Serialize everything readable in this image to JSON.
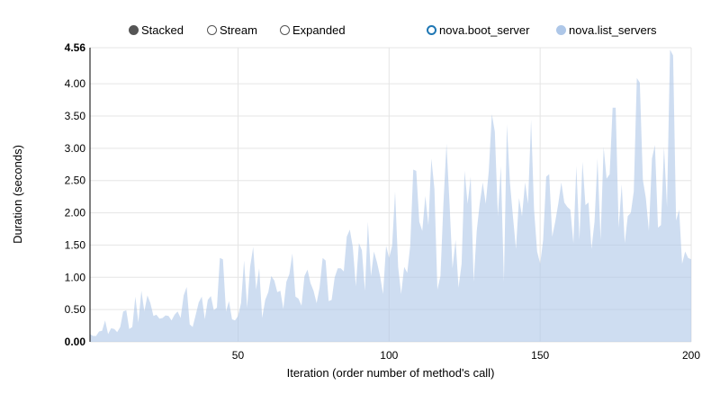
{
  "controls": [
    {
      "label": "Stacked",
      "selected": true
    },
    {
      "label": "Stream",
      "selected": false
    },
    {
      "label": "Expanded",
      "selected": false
    }
  ],
  "legend": [
    {
      "label": "nova.boot_server",
      "color": "#1f77b4",
      "enabled": false
    },
    {
      "label": "nova.list_servers",
      "color": "#aec7e8",
      "enabled": true
    }
  ],
  "chart_data": {
    "type": "area",
    "stacked": true,
    "xlabel": "Iteration (order number of method's call)",
    "ylabel": "Duration (seconds)",
    "xlim": [
      1,
      200
    ],
    "ylim": [
      0,
      4.56
    ],
    "x_ticks": [
      "50",
      "100",
      "150",
      "200"
    ],
    "y_ticks": [
      "0.00",
      "0.50",
      "1.00",
      "1.50",
      "2.00",
      "2.50",
      "3.00",
      "3.50",
      "4.00",
      "4.56"
    ],
    "grid": true,
    "legend_position": "top-right",
    "series": [
      {
        "name": "nova.list_servers",
        "color": "#aec7e8",
        "values": [
          0.12,
          0.09,
          0.09,
          0.16,
          0.17,
          0.33,
          0.12,
          0.21,
          0.2,
          0.15,
          0.23,
          0.47,
          0.49,
          0.2,
          0.23,
          0.7,
          0.3,
          0.79,
          0.47,
          0.72,
          0.6,
          0.4,
          0.42,
          0.36,
          0.37,
          0.41,
          0.4,
          0.33,
          0.42,
          0.47,
          0.37,
          0.72,
          0.85,
          0.27,
          0.23,
          0.42,
          0.61,
          0.7,
          0.35,
          0.65,
          0.71,
          0.49,
          0.53,
          1.3,
          1.28,
          0.47,
          0.63,
          0.35,
          0.33,
          0.4,
          0.6,
          1.26,
          0.53,
          1.16,
          1.47,
          0.81,
          1.14,
          0.37,
          0.65,
          0.77,
          1.02,
          0.95,
          0.77,
          0.79,
          0.51,
          0.93,
          1.05,
          1.37,
          0.7,
          0.67,
          0.56,
          1.02,
          1.12,
          0.91,
          0.79,
          0.6,
          0.84,
          1.3,
          1.26,
          0.63,
          0.65,
          1.0,
          1.14,
          1.14,
          1.09,
          1.63,
          1.74,
          1.47,
          0.86,
          1.53,
          1.42,
          0.79,
          1.86,
          1.02,
          1.4,
          1.23,
          1.02,
          0.74,
          1.49,
          1.3,
          1.49,
          2.33,
          1.16,
          0.74,
          1.16,
          1.07,
          1.49,
          2.67,
          2.65,
          1.86,
          1.72,
          2.26,
          1.81,
          2.84,
          2.37,
          0.81,
          1.02,
          2.14,
          3.07,
          2.14,
          1.14,
          1.58,
          0.84,
          1.21,
          2.65,
          2.14,
          2.56,
          0.93,
          1.72,
          2.14,
          2.47,
          2.14,
          2.65,
          3.53,
          3.26,
          1.95,
          2.72,
          0.93,
          3.37,
          2.47,
          1.95,
          1.44,
          2.23,
          1.95,
          2.47,
          2.14,
          3.44,
          2.05,
          1.4,
          1.21,
          1.58,
          2.56,
          2.6,
          1.63,
          1.86,
          2.14,
          2.47,
          2.16,
          2.09,
          2.05,
          1.53,
          2.72,
          1.58,
          2.79,
          2.12,
          2.16,
          1.44,
          1.86,
          2.84,
          1.58,
          3.02,
          2.53,
          2.6,
          3.63,
          3.63,
          1.77,
          2.44,
          1.53,
          1.95,
          2.0,
          2.33,
          4.09,
          4.02,
          2.51,
          2.23,
          1.72,
          2.84,
          3.05,
          1.77,
          1.81,
          3.02,
          2.09,
          4.53,
          4.44,
          1.88,
          2.05,
          1.21,
          1.4,
          1.3,
          1.28
        ]
      }
    ]
  }
}
